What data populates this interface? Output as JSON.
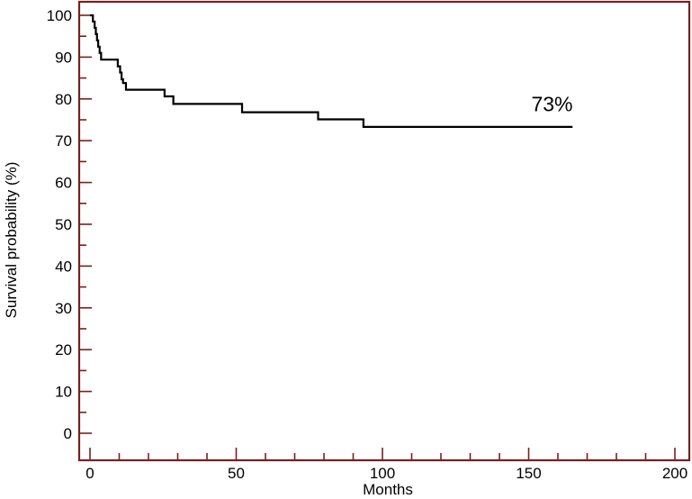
{
  "chart_data": {
    "type": "line",
    "subtype": "kaplan-meier-step",
    "xlabel": "Months",
    "ylabel": "Survival probability (%)",
    "xlim": [
      0,
      200
    ],
    "ylim": [
      0,
      100
    ],
    "x_ticks": [
      0,
      50,
      100,
      150,
      200
    ],
    "y_ticks": [
      0,
      10,
      20,
      30,
      40,
      50,
      60,
      70,
      80,
      90,
      100
    ],
    "x_minor_step": 10,
    "y_minor_step": 5,
    "grid": false,
    "frame_color": "#7a1f1f",
    "line_color": "#000000",
    "series": [
      {
        "points": [
          [
            0,
            100
          ],
          [
            1,
            98.5
          ],
          [
            1.6,
            97
          ],
          [
            2,
            95.5
          ],
          [
            2.4,
            94
          ],
          [
            2.8,
            92.5
          ],
          [
            3.3,
            91
          ],
          [
            3.8,
            89.4
          ],
          [
            9.5,
            87.8
          ],
          [
            10.3,
            86.3
          ],
          [
            10.8,
            84.7
          ],
          [
            11.3,
            83.8
          ],
          [
            12.3,
            82.2
          ],
          [
            25.5,
            80.6
          ],
          [
            28.5,
            78.8
          ],
          [
            52,
            76.8
          ],
          [
            78,
            75.1
          ],
          [
            93.5,
            73.3
          ],
          [
            165,
            73.3
          ]
        ]
      }
    ],
    "annotations": [
      {
        "text": "73%",
        "x": 158,
        "y": 78.8
      }
    ]
  }
}
